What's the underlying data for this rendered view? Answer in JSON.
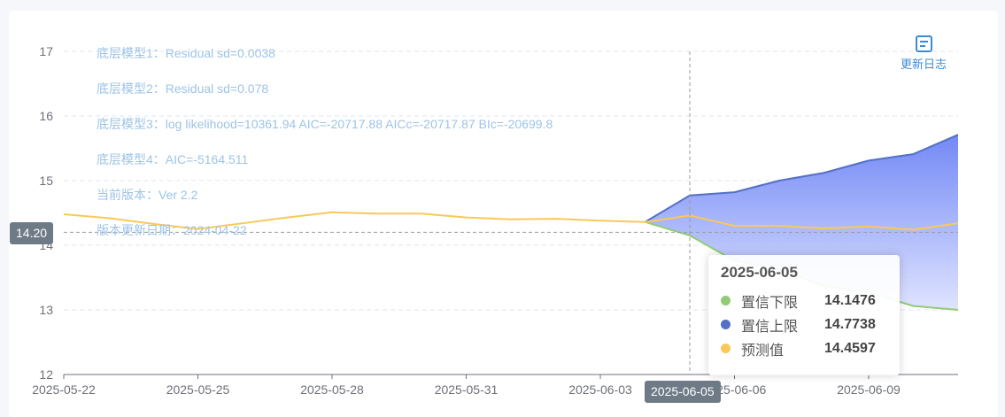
{
  "info_lines": [
    "底层模型1：Residual sd=0.0038",
    "底层模型2：Residual sd=0.078",
    "底层模型3：log likelihood=10361.94 AIC=-20717.88 AICc=-20717.87 BIc=-20699.8",
    "底层模型4：AIC=-5164.511",
    "当前版本：Ver 2.2",
    "版本更新日期：2024-04-22"
  ],
  "changelog_label": "更新日志",
  "axis_pointer": {
    "y_label": "14.20",
    "x_label": "2025-06-05"
  },
  "tooltip": {
    "title": "2025-06-05",
    "rows": [
      {
        "name": "置信下限",
        "value": "14.1476",
        "color": "#91cc75"
      },
      {
        "name": "置信上限",
        "value": "14.7738",
        "color": "#5470c6"
      },
      {
        "name": "预测值",
        "value": "14.4597",
        "color": "#fac858"
      }
    ]
  },
  "chart_data": {
    "type": "line",
    "x": [
      "2025-05-22",
      "2025-05-23",
      "2025-05-24",
      "2025-05-25",
      "2025-05-26",
      "2025-05-27",
      "2025-05-28",
      "2025-05-29",
      "2025-05-30",
      "2025-05-31",
      "2025-06-01",
      "2025-06-02",
      "2025-06-03",
      "2025-06-04",
      "2025-06-05",
      "2025-06-06",
      "2025-06-07",
      "2025-06-08",
      "2025-06-09",
      "2025-06-10",
      "2025-06-11"
    ],
    "x_tick_labels": [
      "2025-05-22",
      "2025-05-25",
      "2025-05-28",
      "2025-05-31",
      "2025-06-03",
      "2025-06-06",
      "2025-06-09"
    ],
    "ylim": [
      12,
      17
    ],
    "y_ticks": [
      12,
      13,
      14,
      15,
      16,
      17
    ],
    "grid": true,
    "series": [
      {
        "name": "预测值",
        "color": "#fac858",
        "values": [
          14.48,
          14.42,
          14.33,
          14.25,
          14.34,
          14.43,
          14.51,
          14.49,
          14.49,
          14.43,
          14.4,
          14.41,
          14.38,
          14.36,
          14.46,
          14.3,
          14.3,
          14.26,
          14.29,
          14.24,
          14.34
        ]
      },
      {
        "name": "置信上限",
        "color": "#5470c6",
        "values": [
          null,
          null,
          null,
          null,
          null,
          null,
          null,
          null,
          null,
          null,
          null,
          null,
          null,
          14.36,
          14.77,
          14.82,
          15.0,
          15.12,
          15.31,
          15.41,
          15.71
        ]
      },
      {
        "name": "置信下限",
        "color": "#91cc75",
        "values": [
          null,
          null,
          null,
          null,
          null,
          null,
          null,
          null,
          null,
          null,
          null,
          null,
          null,
          14.36,
          14.15,
          13.76,
          13.62,
          13.37,
          13.27,
          13.06,
          13.0
        ]
      }
    ]
  }
}
